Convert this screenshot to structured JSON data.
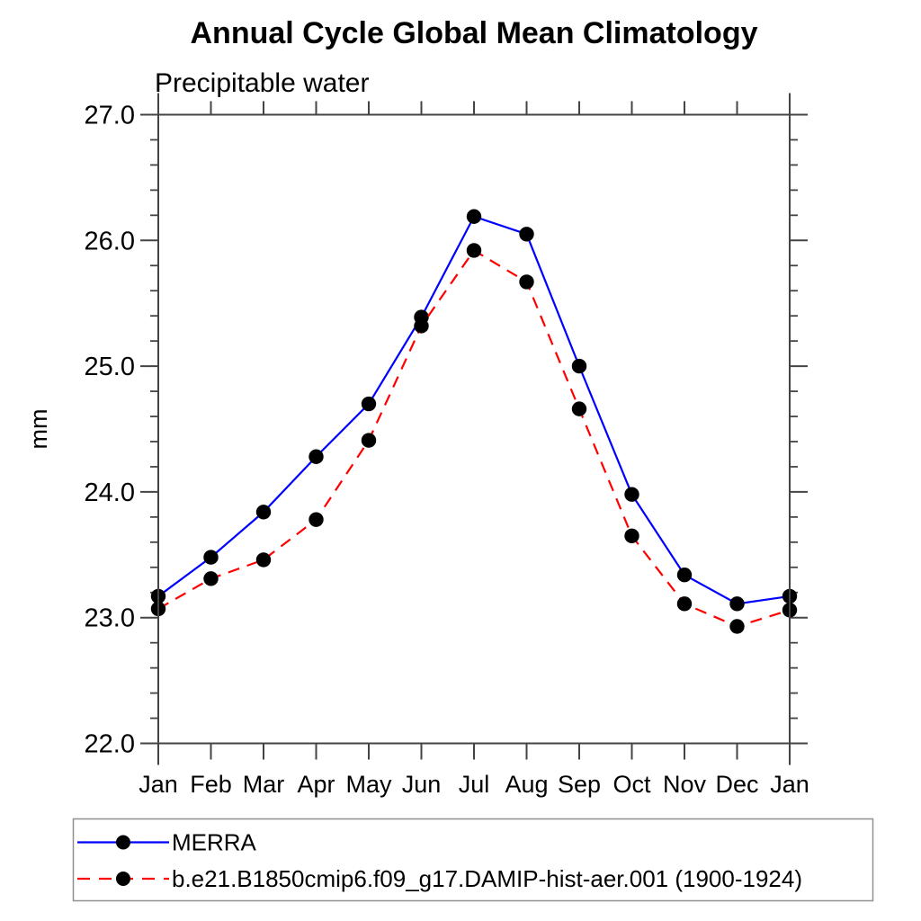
{
  "window": {
    "background": "#ffffff"
  },
  "title": "Annual Cycle Global Mean Climatology",
  "subtitle": "Precipitable water",
  "y_axis_label": "mm",
  "chart_data": {
    "type": "line",
    "x_categories": [
      "Jan",
      "Feb",
      "Mar",
      "Apr",
      "May",
      "Jun",
      "Jul",
      "Aug",
      "Sep",
      "Oct",
      "Nov",
      "Dec",
      "Jan"
    ],
    "ylim": [
      22.0,
      27.0
    ],
    "y_major_step": 1.0,
    "y_minor_step": 0.2,
    "y_major_tick_labels": [
      "22.0",
      "23.0",
      "24.0",
      "25.0",
      "26.0",
      "27.0"
    ],
    "grid": false,
    "legend_position": "bottom-left-box",
    "axis_color": "#444444",
    "marker_color": "#000000",
    "series": [
      {
        "name": "MERRA",
        "line_color": "#0000ff",
        "line_style": "solid",
        "marker": "filled-circle",
        "values": [
          23.17,
          23.48,
          23.84,
          24.28,
          24.7,
          25.39,
          26.19,
          26.05,
          25.0,
          23.98,
          23.34,
          23.11,
          23.17
        ]
      },
      {
        "name": "b.e21.B1850cmip6.f09_g17.DAMIP-hist-aer.001 (1900-1924)",
        "line_color": "#ff0000",
        "line_style": "dashed",
        "marker": "filled-circle",
        "values": [
          23.07,
          23.31,
          23.46,
          23.78,
          24.41,
          25.32,
          25.92,
          25.67,
          24.66,
          23.65,
          23.11,
          22.93,
          23.06
        ]
      }
    ]
  }
}
